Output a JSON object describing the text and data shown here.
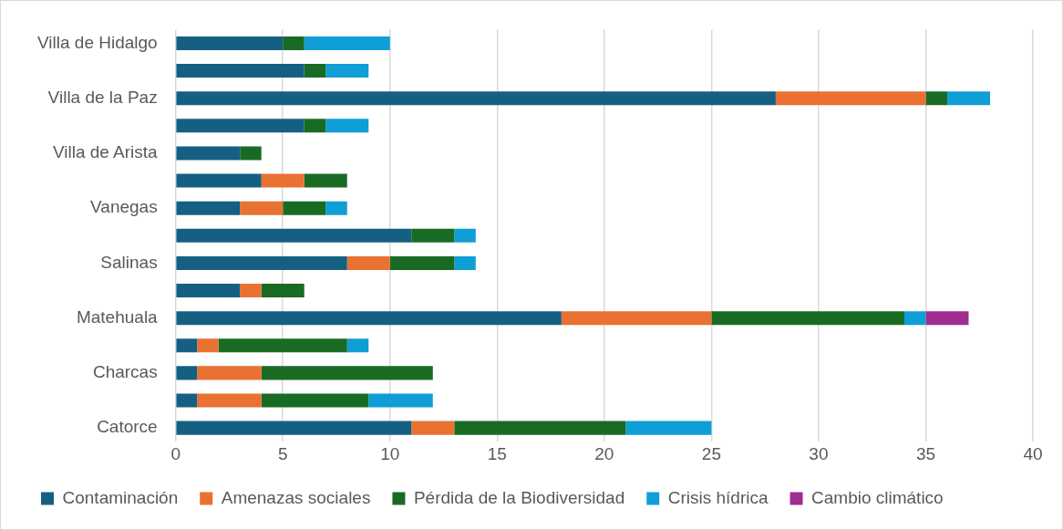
{
  "chart_data": {
    "type": "bar",
    "orientation": "horizontal",
    "stacked": true,
    "categories": [
      "Villa de Hidalgo",
      null,
      "Villa de la Paz",
      null,
      "Villa de Arista",
      null,
      "Vanegas",
      null,
      "Salinas",
      null,
      "Matehuala",
      null,
      "Charcas",
      null,
      "Catorce"
    ],
    "series": [
      {
        "name": "Contaminación",
        "color": "#156082",
        "values": [
          5,
          6,
          28,
          6,
          3,
          4,
          3,
          11,
          8,
          3,
          18,
          1,
          1,
          1,
          11
        ]
      },
      {
        "name": "Amenazas sociales",
        "color": "#e97132",
        "values": [
          0,
          0,
          7,
          0,
          0,
          2,
          2,
          0,
          2,
          1,
          7,
          1,
          3,
          3,
          2
        ]
      },
      {
        "name": "Pérdida de la Biodiversidad",
        "color": "#196b24",
        "values": [
          1,
          1,
          1,
          1,
          1,
          2,
          2,
          2,
          3,
          2,
          9,
          6,
          8,
          5,
          8
        ]
      },
      {
        "name": "Crisis hídrica",
        "color": "#0f9ed5",
        "values": [
          4,
          2,
          2,
          2,
          0,
          0,
          1,
          1,
          1,
          0,
          1,
          1,
          0,
          3,
          4
        ]
      },
      {
        "name": "Cambio climático",
        "color": "#a02b93",
        "values": [
          0,
          0,
          0,
          0,
          0,
          0,
          0,
          0,
          0,
          0,
          2,
          0,
          0,
          0,
          0
        ]
      }
    ],
    "xlim": [
      0,
      40
    ],
    "xticks": [
      0,
      5,
      10,
      15,
      20,
      25,
      30,
      35,
      40
    ],
    "grid": "x",
    "legend": "bottom"
  }
}
